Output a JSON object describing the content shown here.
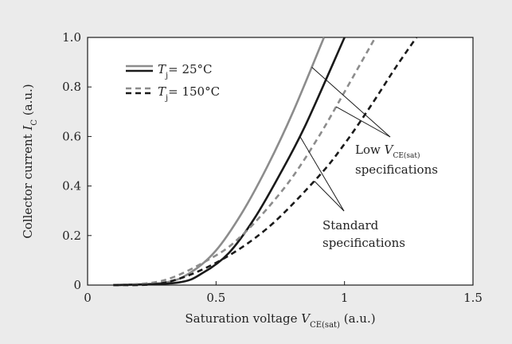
{
  "chart_data": {
    "type": "line",
    "xlabel": {
      "prefix": "Saturation voltage ",
      "var": "V",
      "sub": "CE(sat)",
      "suffix": " (a.u.)"
    },
    "ylabel": {
      "prefix": "Collector current ",
      "var": "I",
      "sub": "C",
      "suffix": " (a.u.)"
    },
    "xlim": [
      0,
      1.5
    ],
    "ylim": [
      0,
      1.0
    ],
    "x_ticks": [
      0,
      0.5,
      1,
      1.5
    ],
    "x_tick_labels": [
      "0",
      "0.5",
      "1",
      "1.5"
    ],
    "y_ticks": [
      0,
      0.2,
      0.4,
      0.6,
      0.8,
      1.0
    ],
    "y_tick_labels": [
      "0",
      "0.2",
      "0.4",
      "0.6",
      "0.8",
      "1.0"
    ],
    "grid": false,
    "legend_position": "top-left",
    "legend": [
      {
        "var": "T",
        "sub": "j",
        "text": "= 25°C",
        "style": "solid"
      },
      {
        "var": "T",
        "sub": "j",
        "text": "= 150°C",
        "style": "dashed"
      }
    ],
    "series": [
      {
        "temp": "25°C",
        "spec": "low",
        "style": "solid",
        "color": "#8c8c8c",
        "x": [
          0.1,
          0.3,
          0.4,
          0.5,
          0.6,
          0.7,
          0.8,
          0.92
        ],
        "y": [
          0.0,
          0.01,
          0.05,
          0.14,
          0.29,
          0.48,
          0.7,
          1.0
        ]
      },
      {
        "temp": "25°C",
        "spec": "standard",
        "style": "solid",
        "color": "#1a1a1a",
        "x": [
          0.1,
          0.35,
          0.45,
          0.55,
          0.65,
          0.75,
          0.85,
          1.0
        ],
        "y": [
          0.0,
          0.01,
          0.05,
          0.13,
          0.27,
          0.45,
          0.65,
          1.0
        ]
      },
      {
        "temp": "150°C",
        "spec": "low",
        "style": "dashed",
        "color": "#8c8c8c",
        "x": [
          0.1,
          0.3,
          0.5,
          0.6,
          0.7,
          0.8,
          0.9,
          1.0,
          1.12
        ],
        "y": [
          0.0,
          0.02,
          0.12,
          0.2,
          0.31,
          0.44,
          0.6,
          0.78,
          1.0
        ]
      },
      {
        "temp": "150°C",
        "spec": "standard",
        "style": "dashed",
        "color": "#1a1a1a",
        "x": [
          0.1,
          0.3,
          0.5,
          0.7,
          0.9,
          1.0,
          1.1,
          1.2,
          1.28
        ],
        "y": [
          0.0,
          0.01,
          0.09,
          0.23,
          0.44,
          0.57,
          0.72,
          0.88,
          1.0
        ]
      }
    ],
    "annotations": [
      {
        "id": "low",
        "lines": [
          {
            "prefix": "Low ",
            "var": "V",
            "sub": "CE(sat)"
          },
          {
            "prefix": "specifications"
          }
        ]
      },
      {
        "id": "standard",
        "lines": [
          {
            "prefix": "Standard"
          },
          {
            "prefix": "specifications"
          }
        ]
      }
    ]
  }
}
